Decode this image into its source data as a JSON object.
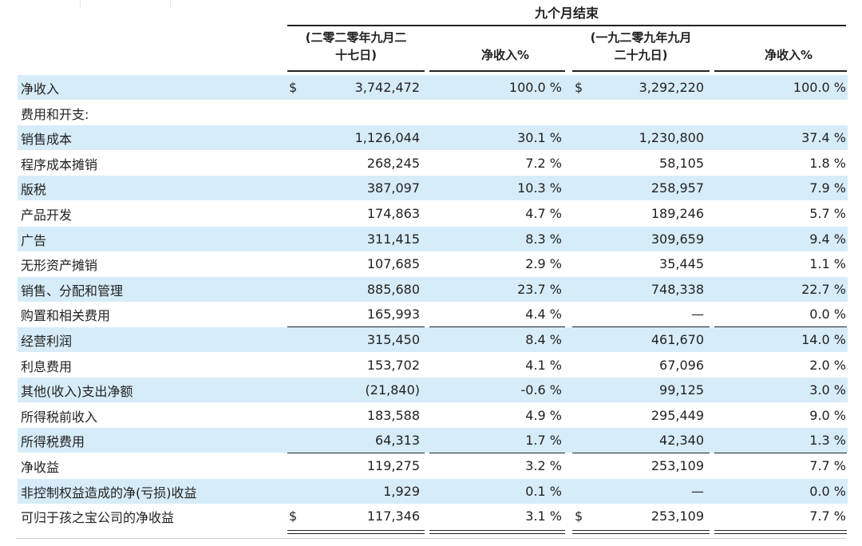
{
  "header": {
    "period_title": "九个月结束",
    "col1_line1": "(二零二零年九月二",
    "col1_line2": "十七日)",
    "col2": "净收入%",
    "col3_line1": "(一九二零九年九月",
    "col3_line2": "二十九日)",
    "col4": "净收入%"
  },
  "currency_symbol": "$",
  "rows": [
    {
      "label": "净收入",
      "v1": "3,742,472",
      "p1": "100.0 %",
      "v2": "3,292,220",
      "p2": "100.0 %"
    },
    {
      "label": "费用和开支:",
      "v1": "",
      "p1": "",
      "v2": "",
      "p2": ""
    },
    {
      "label": "销售成本",
      "v1": "1,126,044",
      "p1": "30.1 %",
      "v2": "1,230,800",
      "p2": "37.4 %"
    },
    {
      "label": "程序成本摊销",
      "v1": "268,245",
      "p1": "7.2 %",
      "v2": "58,105",
      "p2": "1.8 %"
    },
    {
      "label": "版税",
      "v1": "387,097",
      "p1": "10.3 %",
      "v2": "258,957",
      "p2": "7.9 %"
    },
    {
      "label": "产品开发",
      "v1": "174,863",
      "p1": "4.7 %",
      "v2": "189,246",
      "p2": "5.7 %"
    },
    {
      "label": "广告",
      "v1": "311,415",
      "p1": "8.3 %",
      "v2": "309,659",
      "p2": "9.4 %"
    },
    {
      "label": "无形资产摊销",
      "v1": "107,685",
      "p1": "2.9 %",
      "v2": "35,445",
      "p2": "1.1 %"
    },
    {
      "label": "销售、分配和管理",
      "v1": "885,680",
      "p1": "23.7 %",
      "v2": "748,338",
      "p2": "22.7 %"
    },
    {
      "label": "购置和相关费用",
      "v1": "165,993",
      "p1": "4.4 %",
      "v2": "—",
      "p2": "0.0 %"
    },
    {
      "label": "经营利润",
      "v1": "315,450",
      "p1": "8.4 %",
      "v2": "461,670",
      "p2": "14.0 %"
    },
    {
      "label": "利息费用",
      "v1": "153,702",
      "p1": "4.1 %",
      "v2": "67,096",
      "p2": "2.0 %"
    },
    {
      "label": "其他(收入)支出净额",
      "v1": "(21,840)",
      "p1": "-0.6 %",
      "v2": "99,125",
      "p2": "3.0 %"
    },
    {
      "label": "所得税前收入",
      "v1": "183,588",
      "p1": "4.9 %",
      "v2": "295,449",
      "p2": "9.0 %"
    },
    {
      "label": "所得税费用",
      "v1": "64,313",
      "p1": "1.7 %",
      "v2": "42,340",
      "p2": "1.3 %"
    },
    {
      "label": "净收益",
      "v1": "119,275",
      "p1": "3.2 %",
      "v2": "253,109",
      "p2": "7.7 %"
    },
    {
      "label": "非控制权益造成的净(亏损)收益",
      "v1": "1,929",
      "p1": "0.1 %",
      "v2": "—",
      "p2": "0.0 %"
    },
    {
      "label": "可归于孩之宝公司的净收益",
      "v1": "117,346",
      "p1": "3.1 %",
      "v2": "253,109",
      "p2": "7.7 %"
    }
  ]
}
